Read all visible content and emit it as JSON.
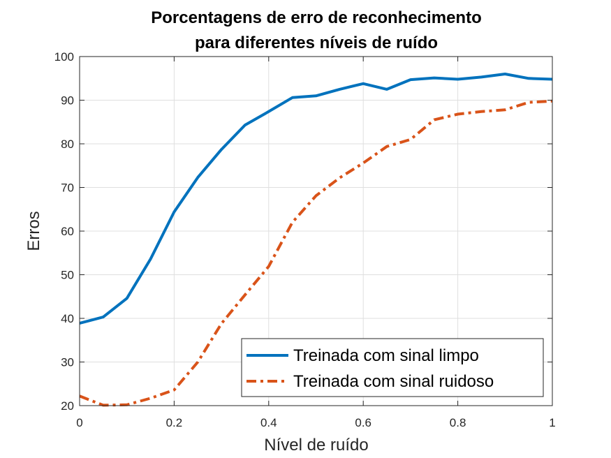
{
  "chart_data": {
    "type": "line",
    "title": [
      "Porcentagens de erro de reconhecimento",
      "para diferentes níveis de ruído"
    ],
    "xlabel": "Nível de ruído",
    "ylabel": "Erros",
    "xlim": [
      0,
      1
    ],
    "ylim": [
      20,
      100
    ],
    "xticks": [
      0,
      0.2,
      0.4,
      0.6,
      0.8,
      1
    ],
    "xtick_labels": [
      "0",
      "0.2",
      "0.4",
      "0.6",
      "0.8",
      "1"
    ],
    "yticks": [
      20,
      30,
      40,
      50,
      60,
      70,
      80,
      90,
      100
    ],
    "ytick_labels": [
      "20",
      "30",
      "40",
      "50",
      "60",
      "70",
      "80",
      "90",
      "100"
    ],
    "grid": true,
    "legend_position": "bottom-right",
    "x": [
      0,
      0.05,
      0.1,
      0.15,
      0.2,
      0.25,
      0.3,
      0.35,
      0.4,
      0.45,
      0.5,
      0.55,
      0.6,
      0.65,
      0.7,
      0.75,
      0.8,
      0.85,
      0.9,
      0.95,
      1
    ],
    "series": [
      {
        "name": "Treinada com sinal limpo",
        "color": "#0072BD",
        "style": "solid",
        "values": [
          38.9,
          40.3,
          44.6,
          53.6,
          64.4,
          72.3,
          78.7,
          84.3,
          87.4,
          90.6,
          91.0,
          92.5,
          93.8,
          92.5,
          94.7,
          95.1,
          94.8,
          95.3,
          96.0,
          95.0,
          94.8
        ]
      },
      {
        "name": "Treinada com sinal ruidoso",
        "color": "#D95319",
        "style": "dashdot",
        "values": [
          22.2,
          20.1,
          20.2,
          21.7,
          23.6,
          30.0,
          38.8,
          45.4,
          51.9,
          62.0,
          68.1,
          72.2,
          75.6,
          79.4,
          81.0,
          85.5,
          86.8,
          87.4,
          87.8,
          89.5,
          89.8
        ]
      }
    ]
  }
}
